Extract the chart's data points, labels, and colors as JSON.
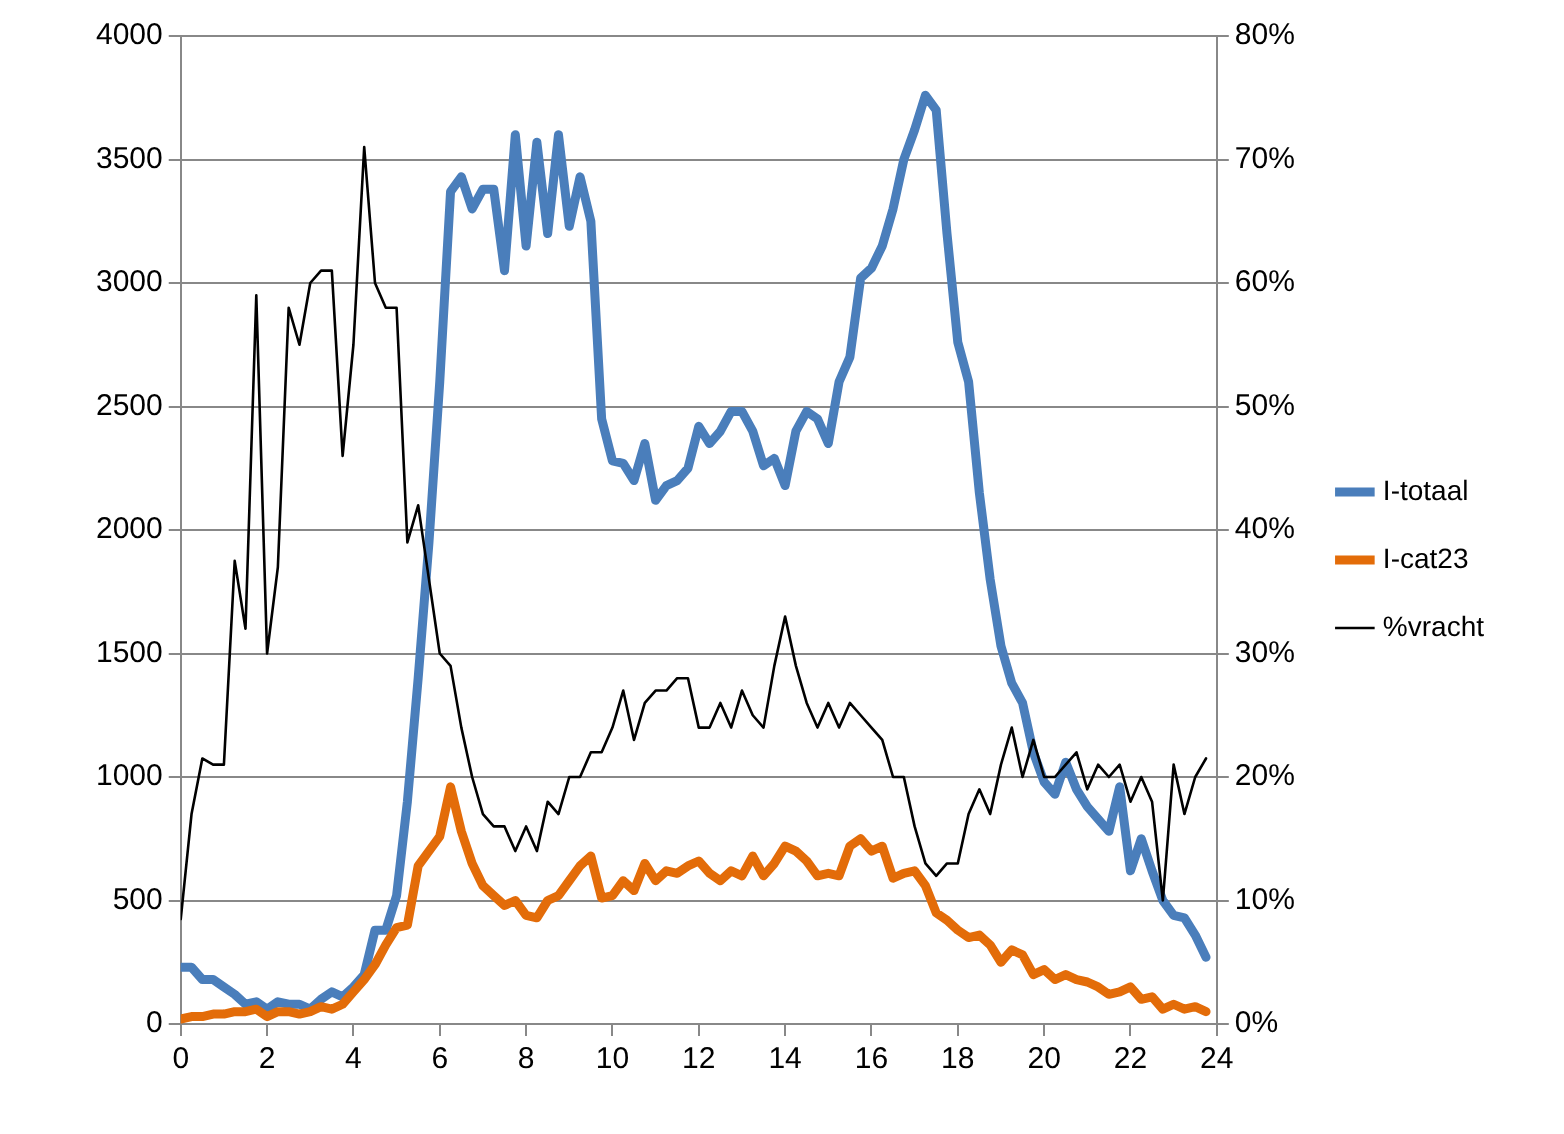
{
  "chart_data": {
    "type": "line",
    "x": [
      0,
      0.25,
      0.5,
      0.75,
      1,
      1.25,
      1.5,
      1.75,
      2,
      2.25,
      2.5,
      2.75,
      3,
      3.25,
      3.5,
      3.75,
      4,
      4.25,
      4.5,
      4.75,
      5,
      5.25,
      5.5,
      5.75,
      6,
      6.25,
      6.5,
      6.75,
      7,
      7.25,
      7.5,
      7.75,
      8,
      8.25,
      8.5,
      8.75,
      9,
      9.25,
      9.5,
      9.75,
      10,
      10.25,
      10.5,
      10.75,
      11,
      11.25,
      11.5,
      11.75,
      12,
      12.25,
      12.5,
      12.75,
      13,
      13.25,
      13.5,
      13.75,
      14,
      14.25,
      14.5,
      14.75,
      15,
      15.25,
      15.5,
      15.75,
      16,
      16.25,
      16.5,
      16.75,
      17,
      17.25,
      17.5,
      17.75,
      18,
      18.25,
      18.5,
      18.75,
      19,
      19.25,
      19.5,
      19.75,
      20,
      20.25,
      20.5,
      20.75,
      21,
      21.25,
      21.5,
      21.75,
      22,
      22.25,
      22.5,
      22.75,
      23,
      23.25,
      23.5,
      23.75
    ],
    "series": [
      {
        "name": "I-totaal",
        "color": "#4a7ebb",
        "values": [
          230,
          230,
          180,
          180,
          150,
          120,
          80,
          90,
          60,
          90,
          80,
          80,
          60,
          100,
          130,
          110,
          150,
          200,
          380,
          380,
          520,
          900,
          1400,
          1950,
          2600,
          3370,
          3430,
          3300,
          3380,
          3380,
          3050,
          3600,
          3150,
          3570,
          3200,
          3600,
          3230,
          3430,
          3250,
          2450,
          2280,
          2270,
          2200,
          2350,
          2120,
          2180,
          2200,
          2250,
          2420,
          2350,
          2400,
          2480,
          2480,
          2400,
          2260,
          2290,
          2180,
          2400,
          2480,
          2450,
          2350,
          2600,
          2700,
          3020,
          3060,
          3150,
          3300,
          3500,
          3620,
          3760,
          3700,
          3200,
          2760,
          2600,
          2150,
          1800,
          1530,
          1380,
          1300,
          1100,
          980,
          930,
          1060,
          950,
          880,
          830,
          780,
          960,
          620,
          750,
          620,
          500,
          440,
          430,
          360,
          270
        ]
      },
      {
        "name": "I-cat23",
        "color": "#e36c09",
        "values": [
          20,
          30,
          30,
          40,
          40,
          50,
          50,
          60,
          30,
          50,
          50,
          40,
          50,
          70,
          60,
          80,
          130,
          180,
          240,
          320,
          390,
          400,
          640,
          700,
          760,
          960,
          780,
          650,
          560,
          520,
          480,
          500,
          440,
          430,
          500,
          520,
          580,
          640,
          680,
          510,
          520,
          580,
          540,
          650,
          580,
          620,
          610,
          640,
          660,
          610,
          580,
          620,
          600,
          680,
          600,
          650,
          720,
          700,
          660,
          600,
          610,
          600,
          720,
          750,
          700,
          720,
          590,
          610,
          620,
          560,
          450,
          420,
          380,
          350,
          360,
          320,
          250,
          300,
          280,
          200,
          220,
          180,
          200,
          180,
          170,
          150,
          120,
          130,
          150,
          100,
          110,
          60,
          80,
          60,
          70,
          50
        ]
      },
      {
        "name": "%vracht",
        "color": "#000000",
        "axis": "y2",
        "values": [
          8.5,
          17,
          21.5,
          21,
          21,
          37.5,
          32,
          59,
          30,
          37,
          58,
          55,
          60,
          61,
          61,
          46,
          55,
          71,
          60,
          58,
          58,
          39,
          42,
          36,
          30,
          29,
          24,
          20,
          17,
          16,
          16,
          14,
          16,
          14,
          18,
          17,
          20,
          20,
          22,
          22,
          24,
          27,
          23,
          26,
          27,
          27,
          28,
          28,
          24,
          24,
          26,
          24,
          27,
          25,
          24,
          29,
          33,
          29,
          26,
          24,
          26,
          24,
          26,
          25,
          24,
          23,
          20,
          20,
          16,
          13,
          12,
          13,
          13,
          17,
          19,
          17,
          21,
          24,
          20,
          23,
          20,
          20,
          21,
          22,
          19,
          21,
          20,
          21,
          18,
          20,
          18,
          10,
          21,
          17,
          20,
          21.5
        ]
      }
    ],
    "xlim": [
      0,
      24
    ],
    "xticks": [
      0,
      2,
      4,
      6,
      8,
      10,
      12,
      14,
      16,
      18,
      20,
      22,
      24
    ],
    "ylim": [
      0,
      4000
    ],
    "yticks": [
      0,
      500,
      1000,
      1500,
      2000,
      2500,
      3000,
      3500,
      4000
    ],
    "y2lim": [
      0,
      80
    ],
    "y2ticks": [
      {
        "value": 0,
        "label": "0%"
      },
      {
        "value": 10,
        "label": "10%"
      },
      {
        "value": 20,
        "label": "20%"
      },
      {
        "value": 30,
        "label": "30%"
      },
      {
        "value": 40,
        "label": "40%"
      },
      {
        "value": 50,
        "label": "50%"
      },
      {
        "value": 60,
        "label": "60%"
      },
      {
        "value": 70,
        "label": "70%"
      },
      {
        "value": 80,
        "label": "80%"
      }
    ],
    "grid": "y",
    "legend": "right",
    "marker": "none",
    "line_style": "solid"
  }
}
